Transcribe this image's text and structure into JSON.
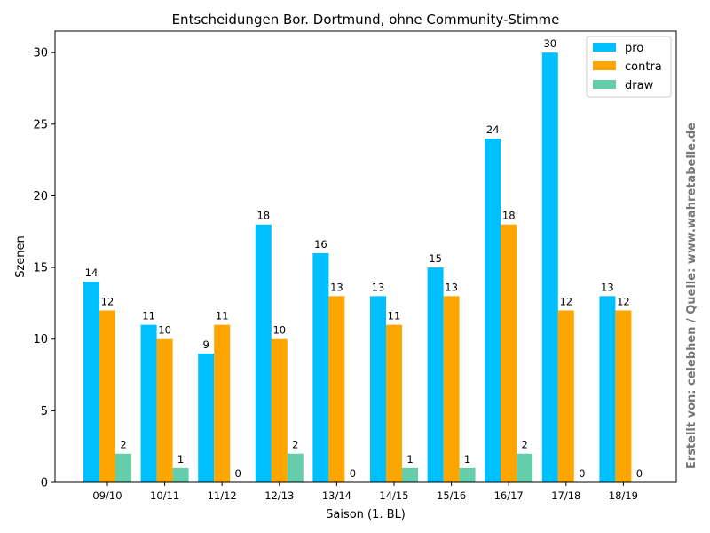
{
  "chart_data": {
    "type": "bar",
    "title": "Entscheidungen Bor. Dortmund, ohne Community-Stimme",
    "xlabel": "Saison (1. BL)",
    "ylabel": "Szenen",
    "ylim": [
      0,
      31.5
    ],
    "yticks": [
      0,
      5,
      10,
      15,
      20,
      25,
      30
    ],
    "categories": [
      "09/10",
      "10/11",
      "11/12",
      "12/13",
      "13/14",
      "14/15",
      "15/16",
      "16/17",
      "17/18",
      "18/19"
    ],
    "series": [
      {
        "name": "pro",
        "color": "#00bfff",
        "values": [
          14,
          11,
          9,
          18,
          16,
          13,
          15,
          24,
          30,
          13
        ]
      },
      {
        "name": "contra",
        "color": "#ffa500",
        "values": [
          12,
          10,
          11,
          10,
          13,
          11,
          13,
          18,
          12,
          12
        ]
      },
      {
        "name": "draw",
        "color": "#66cdaa",
        "values": [
          2,
          1,
          0,
          2,
          0,
          1,
          1,
          2,
          0,
          0
        ]
      }
    ],
    "legend_position": "top-right",
    "grid": false,
    "watermark": "Erstellt von: celebhen / Quelle: www.wahretabelle.de"
  }
}
